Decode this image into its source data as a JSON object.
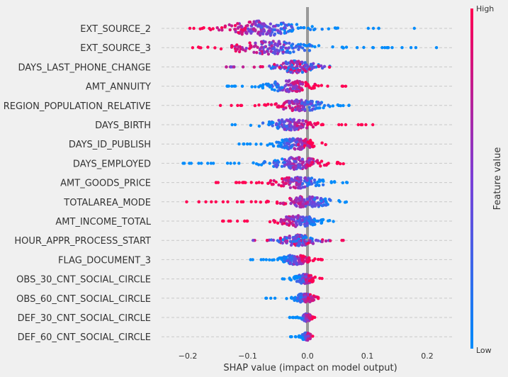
{
  "chart_data": {
    "type": "scatter",
    "subtype": "shap-beeswarm",
    "xlabel": "SHAP value (impact on model output)",
    "xlim": [
      -0.24,
      0.24
    ],
    "xticks": [
      -0.2,
      -0.1,
      0.0,
      0.1,
      0.2
    ],
    "xtick_labels": [
      "−0.2",
      "−0.1",
      "0.0",
      "0.1",
      "0.2"
    ],
    "zero_line": 0.0,
    "grid": "horizontal-dashed",
    "colorbar": {
      "label": "Feature value",
      "high_label": "High",
      "low_label": "Low",
      "high_color": "#ff0052",
      "mid_color": "#7b3fd6",
      "low_color": "#008bfb"
    },
    "features": [
      {
        "name": "EXT_SOURCE_2",
        "min": -0.21,
        "max": 0.21,
        "center": -0.075,
        "spread": 0.055,
        "density": 0.75,
        "corr": -1
      },
      {
        "name": "EXT_SOURCE_3",
        "min": -0.195,
        "max": 0.22,
        "center": -0.06,
        "spread": 0.06,
        "density": 0.65,
        "corr": -1
      },
      {
        "name": "DAYS_LAST_PHONE_CHANGE",
        "min": -0.145,
        "max": 0.045,
        "center": -0.02,
        "spread": 0.03,
        "density": 0.55,
        "corr": 0
      },
      {
        "name": "AMT_ANNUITY",
        "min": -0.135,
        "max": 0.07,
        "center": -0.03,
        "spread": 0.035,
        "density": 0.5,
        "corr": 1
      },
      {
        "name": "REGION_POPULATION_RELATIVE",
        "min": -0.155,
        "max": 0.07,
        "center": -0.01,
        "spread": 0.035,
        "density": 0.5,
        "corr": -1
      },
      {
        "name": "DAYS_BIRTH",
        "min": -0.135,
        "max": 0.11,
        "center": -0.03,
        "spread": 0.035,
        "density": 0.5,
        "corr": 1
      },
      {
        "name": "DAYS_ID_PUBLISH",
        "min": -0.115,
        "max": 0.04,
        "center": -0.02,
        "spread": 0.03,
        "density": 0.5,
        "corr": 1
      },
      {
        "name": "DAYS_EMPLOYED",
        "min": -0.21,
        "max": 0.06,
        "center": -0.02,
        "spread": 0.04,
        "density": 0.55,
        "corr": 1
      },
      {
        "name": "AMT_GOODS_PRICE",
        "min": -0.165,
        "max": 0.07,
        "center": -0.015,
        "spread": 0.035,
        "density": 0.5,
        "corr": -1
      },
      {
        "name": "TOTALAREA_MODE",
        "min": -0.21,
        "max": 0.065,
        "center": 0.0,
        "spread": 0.035,
        "density": 0.5,
        "corr": -1
      },
      {
        "name": "AMT_INCOME_TOTAL",
        "min": -0.145,
        "max": 0.045,
        "center": -0.015,
        "spread": 0.03,
        "density": 0.5,
        "corr": -1
      },
      {
        "name": "HOUR_APPR_PROCESS_START",
        "min": -0.1,
        "max": 0.06,
        "center": -0.015,
        "spread": 0.025,
        "density": 0.5,
        "corr": 0
      },
      {
        "name": "FLAG_DOCUMENT_3",
        "min": -0.095,
        "max": 0.025,
        "center": -0.02,
        "spread": 0.02,
        "density": 0.4,
        "corr": 1
      },
      {
        "name": "OBS_30_CNT_SOCIAL_CIRCLE",
        "min": -0.055,
        "max": 0.025,
        "center": -0.005,
        "spread": 0.015,
        "density": 0.35,
        "corr": 1
      },
      {
        "name": "OBS_60_CNT_SOCIAL_CIRCLE",
        "min": -0.07,
        "max": 0.02,
        "center": -0.005,
        "spread": 0.015,
        "density": 0.35,
        "corr": 1
      },
      {
        "name": "DEF_30_CNT_SOCIAL_CIRCLE",
        "min": -0.03,
        "max": 0.015,
        "center": -0.002,
        "spread": 0.008,
        "density": 0.25,
        "corr": 1
      },
      {
        "name": "DEF_60_CNT_SOCIAL_CIRCLE",
        "min": -0.03,
        "max": 0.01,
        "center": -0.002,
        "spread": 0.008,
        "density": 0.25,
        "corr": 1
      }
    ]
  }
}
